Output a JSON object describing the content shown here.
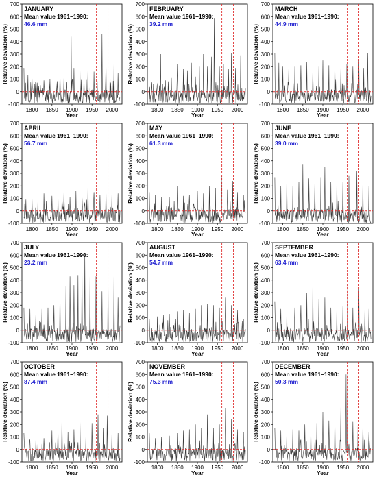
{
  "style": {
    "line_color": "#3a3a3a",
    "ref_line_color": "#e03030",
    "value_color": "#2020d0"
  },
  "chart_data": [
    {
      "type": "line",
      "month": "JANUARY",
      "mean_label": "Mean value 1961–1990:",
      "mean_value": "46.6 mm",
      "xlabel": "Year",
      "ylabel": "Relative deviation (%)",
      "xlim": [
        1775,
        2025
      ],
      "ylim": [
        -100,
        700
      ],
      "xticks": [
        1800,
        1850,
        1900,
        1950,
        2000
      ],
      "yticks": [
        -100,
        0,
        100,
        200,
        300,
        400,
        500,
        600,
        700
      ],
      "reference_years": [
        1961,
        1990
      ],
      "zero_line": 0,
      "peaks": [
        [
          1780,
          190
        ],
        [
          1790,
          130
        ],
        [
          1800,
          120
        ],
        [
          1815,
          110
        ],
        [
          1830,
          90
        ],
        [
          1845,
          100
        ],
        [
          1860,
          110
        ],
        [
          1870,
          150
        ],
        [
          1880,
          110
        ],
        [
          1898,
          440
        ],
        [
          1905,
          190
        ],
        [
          1920,
          170
        ],
        [
          1930,
          110
        ],
        [
          1940,
          200
        ],
        [
          1955,
          160
        ],
        [
          1975,
          460
        ],
        [
          1985,
          250
        ],
        [
          1995,
          180
        ],
        [
          2005,
          220
        ],
        [
          2015,
          150
        ]
      ]
    },
    {
      "type": "line",
      "month": "FEBRUARY",
      "mean_label": "Mean value 1961–1990:",
      "mean_value": "39.2 mm",
      "xlabel": "Year",
      "ylabel": "Relative deviation (%)",
      "xlim": [
        1775,
        2025
      ],
      "ylim": [
        -100,
        700
      ],
      "xticks": [
        1800,
        1850,
        1900,
        1950,
        2000
      ],
      "yticks": [
        -100,
        0,
        100,
        200,
        300,
        400,
        500,
        600,
        700
      ],
      "reference_years": [
        1961,
        1990
      ],
      "zero_line": 0,
      "peaks": [
        [
          1790,
          60
        ],
        [
          1800,
          50
        ],
        [
          1808,
          300
        ],
        [
          1820,
          90
        ],
        [
          1835,
          110
        ],
        [
          1850,
          220
        ],
        [
          1865,
          180
        ],
        [
          1875,
          170
        ],
        [
          1885,
          230
        ],
        [
          1895,
          120
        ],
        [
          1905,
          200
        ],
        [
          1915,
          300
        ],
        [
          1925,
          200
        ],
        [
          1935,
          280
        ],
        [
          1942,
          590
        ],
        [
          1955,
          200
        ],
        [
          1965,
          220
        ],
        [
          1978,
          180
        ],
        [
          1985,
          310
        ],
        [
          1995,
          190
        ],
        [
          2008,
          290
        ]
      ]
    },
    {
      "type": "line",
      "month": "MARCH",
      "mean_label": "Mean value 1961–1990:",
      "mean_value": "44.9 mm",
      "xlabel": "Year",
      "ylabel": "Relative deviation (%)",
      "xlim": [
        1775,
        2025
      ],
      "ylim": [
        -100,
        700
      ],
      "xticks": [
        1800,
        1850,
        1900,
        1950,
        2000
      ],
      "yticks": [
        -100,
        0,
        100,
        200,
        300,
        400,
        500,
        600,
        700
      ],
      "reference_years": [
        1961,
        1990
      ],
      "zero_line": 0,
      "peaks": [
        [
          1780,
          310
        ],
        [
          1790,
          230
        ],
        [
          1800,
          200
        ],
        [
          1815,
          210
        ],
        [
          1830,
          200
        ],
        [
          1845,
          210
        ],
        [
          1860,
          240
        ],
        [
          1875,
          190
        ],
        [
          1890,
          200
        ],
        [
          1900,
          250
        ],
        [
          1915,
          210
        ],
        [
          1930,
          260
        ],
        [
          1945,
          190
        ],
        [
          1960,
          220
        ],
        [
          1975,
          200
        ],
        [
          1990,
          250
        ],
        [
          2002,
          190
        ],
        [
          2012,
          310
        ]
      ]
    },
    {
      "type": "line",
      "month": "APRIL",
      "mean_label": "Mean value 1961–1990:",
      "mean_value": "56.7 mm",
      "xlabel": "Year",
      "ylabel": "Relative deviation (%)",
      "xlim": [
        1775,
        2025
      ],
      "ylim": [
        -100,
        700
      ],
      "xticks": [
        1800,
        1850,
        1900,
        1950,
        2000
      ],
      "yticks": [
        -100,
        0,
        100,
        200,
        300,
        400,
        500,
        600,
        700
      ],
      "reference_years": [
        1961,
        1990
      ],
      "zero_line": 0,
      "peaks": [
        [
          1785,
          90
        ],
        [
          1800,
          120
        ],
        [
          1815,
          100
        ],
        [
          1830,
          140
        ],
        [
          1850,
          120
        ],
        [
          1865,
          130
        ],
        [
          1880,
          150
        ],
        [
          1895,
          110
        ],
        [
          1910,
          160
        ],
        [
          1925,
          120
        ],
        [
          1940,
          230
        ],
        [
          1955,
          150
        ],
        [
          1970,
          130
        ],
        [
          1985,
          180
        ],
        [
          2000,
          160
        ],
        [
          2015,
          140
        ]
      ]
    },
    {
      "type": "line",
      "month": "MAY",
      "mean_label": "Mean value 1961–1990:",
      "mean_value": "61.3 mm",
      "xlabel": "Year",
      "ylabel": "Relative deviation (%)",
      "xlim": [
        1775,
        2025
      ],
      "ylim": [
        -100,
        700
      ],
      "xticks": [
        1800,
        1850,
        1900,
        1950,
        2000
      ],
      "yticks": [
        -100,
        0,
        100,
        200,
        300,
        400,
        500,
        600,
        700
      ],
      "reference_years": [
        1961,
        1990
      ],
      "zero_line": 0,
      "peaks": [
        [
          1780,
          150
        ],
        [
          1795,
          130
        ],
        [
          1810,
          110
        ],
        [
          1830,
          110
        ],
        [
          1850,
          200
        ],
        [
          1865,
          120
        ],
        [
          1880,
          130
        ],
        [
          1900,
          160
        ],
        [
          1915,
          140
        ],
        [
          1930,
          200
        ],
        [
          1945,
          180
        ],
        [
          1960,
          280
        ],
        [
          1975,
          170
        ],
        [
          1988,
          240
        ],
        [
          2000,
          150
        ],
        [
          2015,
          130
        ]
      ]
    },
    {
      "type": "line",
      "month": "JUNE",
      "mean_label": "Mean value 1961–1990:",
      "mean_value": "39.0 mm",
      "xlabel": "Year",
      "ylabel": "Relative deviation (%)",
      "xlim": [
        1775,
        2025
      ],
      "ylim": [
        -100,
        700
      ],
      "xticks": [
        1800,
        1850,
        1900,
        1950,
        2000
      ],
      "yticks": [
        -100,
        0,
        100,
        200,
        300,
        400,
        500,
        600,
        700
      ],
      "reference_years": [
        1961,
        1990
      ],
      "zero_line": 0,
      "peaks": [
        [
          1780,
          270
        ],
        [
          1795,
          200
        ],
        [
          1810,
          280
        ],
        [
          1825,
          200
        ],
        [
          1840,
          230
        ],
        [
          1850,
          370
        ],
        [
          1865,
          260
        ],
        [
          1880,
          220
        ],
        [
          1895,
          270
        ],
        [
          1905,
          350
        ],
        [
          1920,
          230
        ],
        [
          1935,
          260
        ],
        [
          1950,
          230
        ],
        [
          1965,
          280
        ],
        [
          1985,
          320
        ],
        [
          2000,
          260
        ],
        [
          2015,
          200
        ]
      ]
    },
    {
      "type": "line",
      "month": "JULY",
      "mean_label": "Mean value 1961–1990:",
      "mean_value": "23.2 mm",
      "xlabel": "Year",
      "ylabel": "Relative deviation (%)",
      "xlim": [
        1775,
        2025
      ],
      "ylim": [
        -100,
        700
      ],
      "xticks": [
        1800,
        1850,
        1900,
        1950,
        2000
      ],
      "yticks": [
        -100,
        0,
        100,
        200,
        300,
        400,
        500,
        600,
        700
      ],
      "reference_years": [
        1961,
        1990
      ],
      "zero_line": 0,
      "peaks": [
        [
          1780,
          180
        ],
        [
          1795,
          170
        ],
        [
          1810,
          150
        ],
        [
          1825,
          170
        ],
        [
          1840,
          180
        ],
        [
          1855,
          200
        ],
        [
          1870,
          330
        ],
        [
          1885,
          350
        ],
        [
          1895,
          430
        ],
        [
          1905,
          360
        ],
        [
          1915,
          440
        ],
        [
          1925,
          560
        ],
        [
          1932,
          610
        ],
        [
          1945,
          440
        ],
        [
          1960,
          430
        ],
        [
          1975,
          310
        ],
        [
          1990,
          450
        ],
        [
          2005,
          440
        ],
        [
          2015,
          260
        ]
      ]
    },
    {
      "type": "line",
      "month": "AUGUST",
      "mean_label": "Mean value 1961–1990:",
      "mean_value": "54.7 mm",
      "xlabel": "Year",
      "ylabel": "Relative deviation (%)",
      "xlim": [
        1775,
        2025
      ],
      "ylim": [
        -100,
        700
      ],
      "xticks": [
        1800,
        1850,
        1900,
        1950,
        2000
      ],
      "yticks": [
        -100,
        0,
        100,
        200,
        300,
        400,
        500,
        600,
        700
      ],
      "reference_years": [
        1961,
        1990
      ],
      "zero_line": 0,
      "peaks": [
        [
          1780,
          90
        ],
        [
          1800,
          110
        ],
        [
          1815,
          120
        ],
        [
          1830,
          130
        ],
        [
          1850,
          150
        ],
        [
          1865,
          160
        ],
        [
          1880,
          140
        ],
        [
          1895,
          170
        ],
        [
          1910,
          200
        ],
        [
          1925,
          210
        ],
        [
          1940,
          200
        ],
        [
          1955,
          180
        ],
        [
          1970,
          260
        ],
        [
          1985,
          200
        ],
        [
          2000,
          160
        ],
        [
          2015,
          90
        ]
      ]
    },
    {
      "type": "line",
      "month": "SEPTEMBER",
      "mean_label": "Mean value 1961–1990:",
      "mean_value": "63.4 mm",
      "xlabel": "Year",
      "ylabel": "Relative deviation (%)",
      "xlim": [
        1775,
        2025
      ],
      "ylim": [
        -100,
        700
      ],
      "xticks": [
        1800,
        1850,
        1900,
        1950,
        2000
      ],
      "yticks": [
        -100,
        0,
        100,
        200,
        300,
        400,
        500,
        600,
        700
      ],
      "reference_years": [
        1961,
        1990
      ],
      "zero_line": 0,
      "peaks": [
        [
          1780,
          230
        ],
        [
          1795,
          170
        ],
        [
          1810,
          160
        ],
        [
          1830,
          180
        ],
        [
          1845,
          200
        ],
        [
          1860,
          300
        ],
        [
          1875,
          430
        ],
        [
          1890,
          250
        ],
        [
          1905,
          260
        ],
        [
          1920,
          180
        ],
        [
          1935,
          200
        ],
        [
          1950,
          190
        ],
        [
          1962,
          350
        ],
        [
          1975,
          180
        ],
        [
          1990,
          330
        ],
        [
          2005,
          160
        ],
        [
          2015,
          170
        ]
      ]
    },
    {
      "type": "line",
      "month": "OCTOBER",
      "mean_label": "Mean value 1961–1990:",
      "mean_value": "87.4 mm",
      "xlabel": "Year",
      "ylabel": "Relative deviation (%)",
      "xlim": [
        1775,
        2025
      ],
      "ylim": [
        -100,
        700
      ],
      "xticks": [
        1800,
        1850,
        1900,
        1950,
        2000
      ],
      "yticks": [
        -100,
        0,
        100,
        200,
        300,
        400,
        500,
        600,
        700
      ],
      "reference_years": [
        1961,
        1990
      ],
      "zero_line": 0,
      "peaks": [
        [
          1780,
          130
        ],
        [
          1795,
          70
        ],
        [
          1810,
          100
        ],
        [
          1830,
          90
        ],
        [
          1850,
          150
        ],
        [
          1865,
          170
        ],
        [
          1875,
          270
        ],
        [
          1890,
          140
        ],
        [
          1905,
          160
        ],
        [
          1920,
          220
        ],
        [
          1935,
          130
        ],
        [
          1950,
          210
        ],
        [
          1965,
          280
        ],
        [
          1978,
          170
        ],
        [
          1988,
          270
        ],
        [
          2000,
          150
        ],
        [
          2015,
          130
        ]
      ]
    },
    {
      "type": "line",
      "month": "NOVEMBER",
      "mean_label": "Mean value 1961–1990:",
      "mean_value": "75.3 mm",
      "xlabel": "Year",
      "ylabel": "Relative deviation (%)",
      "xlim": [
        1775,
        2025
      ],
      "ylim": [
        -100,
        700
      ],
      "xticks": [
        1800,
        1850,
        1900,
        1950,
        2000
      ],
      "yticks": [
        -100,
        0,
        100,
        200,
        300,
        400,
        500,
        600,
        700
      ],
      "reference_years": [
        1961,
        1990
      ],
      "zero_line": 0,
      "peaks": [
        [
          1780,
          130
        ],
        [
          1795,
          90
        ],
        [
          1810,
          100
        ],
        [
          1830,
          110
        ],
        [
          1850,
          130
        ],
        [
          1865,
          150
        ],
        [
          1880,
          160
        ],
        [
          1895,
          200
        ],
        [
          1910,
          170
        ],
        [
          1925,
          280
        ],
        [
          1940,
          170
        ],
        [
          1955,
          200
        ],
        [
          1970,
          330
        ],
        [
          1985,
          240
        ],
        [
          2000,
          160
        ],
        [
          2015,
          140
        ]
      ]
    },
    {
      "type": "line",
      "month": "DECEMBER",
      "mean_label": "Mean value 1961–1990:",
      "mean_value": "50.3 mm",
      "xlabel": "Year",
      "ylabel": "Relative deviation (%)",
      "xlim": [
        1775,
        2025
      ],
      "ylim": [
        -100,
        700
      ],
      "xticks": [
        1800,
        1850,
        1900,
        1950,
        2000
      ],
      "yticks": [
        -100,
        0,
        100,
        200,
        300,
        400,
        500,
        600,
        700
      ],
      "reference_years": [
        1961,
        1990
      ],
      "zero_line": 0,
      "peaks": [
        [
          1780,
          170
        ],
        [
          1795,
          150
        ],
        [
          1810,
          140
        ],
        [
          1825,
          160
        ],
        [
          1840,
          150
        ],
        [
          1855,
          200
        ],
        [
          1870,
          190
        ],
        [
          1885,
          210
        ],
        [
          1900,
          300
        ],
        [
          1915,
          230
        ],
        [
          1930,
          280
        ],
        [
          1945,
          340
        ],
        [
          1958,
          600
        ],
        [
          1962,
          630
        ],
        [
          1975,
          220
        ],
        [
          1988,
          250
        ],
        [
          2000,
          200
        ],
        [
          2015,
          140
        ]
      ]
    }
  ]
}
